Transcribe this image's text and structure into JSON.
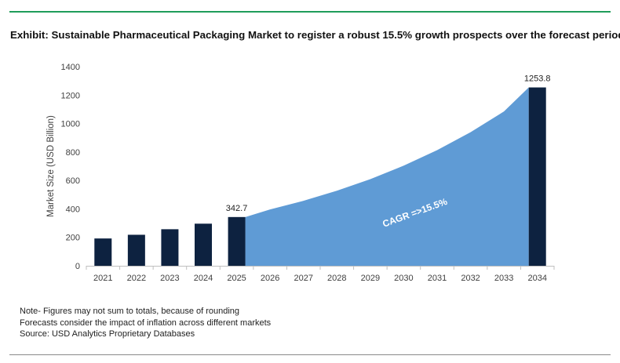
{
  "title": "Exhibit: Sustainable Pharmaceutical Packaging Market to register a robust 15.5% growth prospects over the forecast period",
  "chart_data": {
    "type": "bar",
    "ylabel": "Market Size (USD Billion)",
    "xlabel": "",
    "ylim": [
      0,
      1400
    ],
    "yticks": [
      0,
      200,
      400,
      600,
      800,
      1000,
      1200,
      1400
    ],
    "categories": [
      "2021",
      "2022",
      "2023",
      "2024",
      "2025",
      "2026",
      "2027",
      "2028",
      "2029",
      "2030",
      "2031",
      "2032",
      "2033",
      "2034"
    ],
    "bars": [
      {
        "x": "2021",
        "value": 192
      },
      {
        "x": "2022",
        "value": 218
      },
      {
        "x": "2023",
        "value": 257
      },
      {
        "x": "2024",
        "value": 296
      },
      {
        "x": "2025",
        "value": 342.7
      },
      {
        "x": "2034",
        "value": 1253.8
      }
    ],
    "area_series": {
      "x": [
        "2025",
        "2026",
        "2027",
        "2028",
        "2029",
        "2030",
        "2031",
        "2032",
        "2033",
        "2034"
      ],
      "values": [
        342.7,
        396,
        457,
        528,
        609,
        704,
        813,
        939,
        1085,
        1253.8
      ]
    },
    "data_labels": [
      {
        "x": "2025",
        "text": "342.7"
      },
      {
        "x": "2034",
        "text": "1253.8"
      }
    ],
    "annotation": "CAGR =>15.5%",
    "colors": {
      "bar": "#0d2240",
      "area": "#5f9bd5",
      "axis": "#bfbfbf"
    },
    "grid": false,
    "legend": "none"
  },
  "notes": [
    "Note- Figures may not sum to totals, because of rounding",
    "Forecasts consider the impact of inflation across different markets",
    "Source: USD Analytics Proprietary Databases"
  ]
}
